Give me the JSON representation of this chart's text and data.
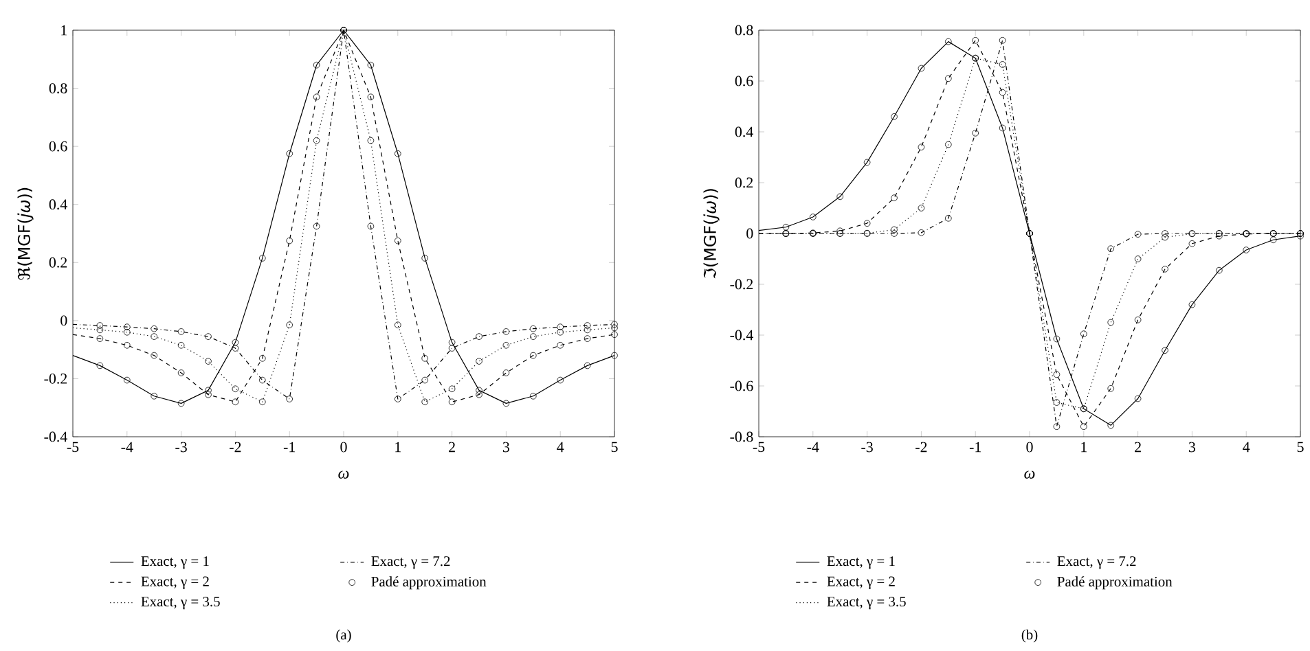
{
  "chart_data": [
    {
      "type": "line",
      "xlabel": "ω",
      "ylabel": "ℜ(MGF(*jω*))",
      "annotations": [
        "(a)"
      ],
      "legend": "bottom",
      "x": [
        -5,
        -4.5,
        -4,
        -3.5,
        -3,
        -2.5,
        -2,
        -1.5,
        -1,
        -0.5,
        0,
        0.5,
        1,
        1.5,
        2,
        2.5,
        3,
        3.5,
        4,
        4.5,
        5
      ],
      "xlim": [
        -5,
        5
      ],
      "xticks": [
        -5,
        -4,
        -3,
        -2,
        -1,
        0,
        1,
        2,
        3,
        4,
        5
      ],
      "ylim": [
        -0.4,
        1
      ],
      "yticks": [
        -0.4,
        -0.2,
        0,
        0.2,
        0.4,
        0.6,
        0.8,
        1
      ],
      "series": [
        {
          "name": "Exact, γ = 1",
          "color": "#000000",
          "line_style": "solid",
          "values": [
            -0.12,
            -0.155,
            -0.205,
            -0.26,
            -0.285,
            -0.24,
            -0.075,
            0.215,
            0.575,
            0.88,
            1,
            0.88,
            0.575,
            0.215,
            -0.075,
            -0.24,
            -0.285,
            -0.26,
            -0.205,
            -0.155,
            -0.12
          ]
        },
        {
          "name": "Exact, γ = 2",
          "color": "#000000",
          "line_style": "dashed",
          "values": [
            -0.048,
            -0.062,
            -0.085,
            -0.12,
            -0.18,
            -0.255,
            -0.28,
            -0.13,
            0.275,
            0.77,
            1,
            0.77,
            0.275,
            -0.13,
            -0.28,
            -0.255,
            -0.18,
            -0.12,
            -0.085,
            -0.062,
            -0.048
          ]
        },
        {
          "name": "Exact, γ = 3.5",
          "color": "#000000",
          "line_style": "dotted",
          "values": [
            -0.025,
            -0.032,
            -0.04,
            -0.055,
            -0.085,
            -0.14,
            -0.235,
            -0.28,
            -0.015,
            0.62,
            1,
            0.62,
            -0.015,
            -0.28,
            -0.235,
            -0.14,
            -0.085,
            -0.055,
            -0.04,
            -0.032,
            -0.025
          ]
        },
        {
          "name": "Exact, γ = 7.2",
          "color": "#000000",
          "line_style": "dashdot",
          "values": [
            -0.013,
            -0.017,
            -0.022,
            -0.028,
            -0.038,
            -0.055,
            -0.095,
            -0.205,
            -0.27,
            0.325,
            1,
            0.325,
            -0.27,
            -0.205,
            -0.095,
            -0.055,
            -0.038,
            -0.028,
            -0.022,
            -0.017,
            -0.013
          ]
        },
        {
          "name": "Padé approximation",
          "type": "scatter",
          "marker": "circle",
          "color": "#000000",
          "x": [
            -4.5,
            -4,
            -3.5,
            -3,
            -2.5,
            -2,
            -1.5,
            -1,
            -0.5,
            0,
            0.5,
            1,
            1.5,
            2,
            2.5,
            3,
            3.5,
            4,
            4.5,
            5,
            -4.5,
            -4,
            -3.5,
            -3,
            -2.5,
            -2,
            -1.5,
            -1,
            -0.5,
            0,
            0.5,
            1,
            1.5,
            2,
            2.5,
            3,
            3.5,
            4,
            4.5,
            5,
            -4.5,
            -4,
            -3.5,
            -3,
            -2.5,
            -2,
            -1.5,
            -1,
            -0.5,
            0,
            0.5,
            1,
            1.5,
            2,
            2.5,
            3,
            3.5,
            4,
            4.5,
            5,
            -4.5,
            -4,
            -3.5,
            -3,
            -2.5,
            -2,
            -1.5,
            -1,
            -0.5,
            0,
            0.5,
            1,
            1.5,
            2,
            2.5,
            3,
            3.5,
            4,
            4.5,
            5
          ],
          "values": [
            -0.155,
            -0.205,
            -0.26,
            -0.285,
            -0.24,
            -0.075,
            0.215,
            0.575,
            0.88,
            1,
            0.88,
            0.575,
            0.215,
            -0.075,
            -0.24,
            -0.285,
            -0.26,
            -0.205,
            -0.155,
            -0.12,
            -0.062,
            -0.085,
            -0.12,
            -0.18,
            -0.255,
            -0.28,
            -0.13,
            0.275,
            0.77,
            1,
            0.77,
            0.275,
            -0.13,
            -0.28,
            -0.255,
            -0.18,
            -0.12,
            -0.085,
            -0.062,
            -0.048,
            -0.032,
            -0.04,
            -0.055,
            -0.085,
            -0.14,
            -0.235,
            -0.28,
            -0.015,
            0.62,
            1,
            0.62,
            -0.015,
            -0.28,
            -0.235,
            -0.14,
            -0.085,
            -0.055,
            -0.04,
            -0.032,
            -0.025,
            -0.017,
            -0.022,
            -0.028,
            -0.038,
            -0.055,
            -0.095,
            -0.205,
            -0.27,
            0.325,
            1,
            0.325,
            -0.27,
            -0.205,
            -0.095,
            -0.055,
            -0.038,
            -0.028,
            -0.022,
            -0.017,
            -0.013
          ]
        }
      ]
    },
    {
      "type": "line",
      "xlabel": "ω",
      "ylabel": "ℑ(MGF(*jω*))",
      "annotations": [
        "(b)"
      ],
      "legend": "bottom",
      "x": [
        -5,
        -4.5,
        -4,
        -3.5,
        -3,
        -2.5,
        -2,
        -1.5,
        -1,
        -0.5,
        0,
        0.5,
        1,
        1.5,
        2,
        2.5,
        3,
        3.5,
        4,
        4.5,
        5
      ],
      "xlim": [
        -5,
        5
      ],
      "xticks": [
        -5,
        -4,
        -3,
        -2,
        -1,
        0,
        1,
        2,
        3,
        4,
        5
      ],
      "ylim": [
        -0.8,
        0.8
      ],
      "yticks": [
        -0.8,
        -0.6,
        -0.4,
        -0.2,
        0,
        0.2,
        0.4,
        0.6,
        0.8
      ],
      "series": [
        {
          "name": "Exact, γ = 1",
          "color": "#000000",
          "line_style": "solid",
          "values": [
            0.012,
            0.025,
            0.065,
            0.145,
            0.28,
            0.46,
            0.65,
            0.755,
            0.69,
            0.415,
            0,
            -0.415,
            -0.69,
            -0.755,
            -0.65,
            -0.46,
            -0.28,
            -0.145,
            -0.065,
            -0.025,
            -0.01
          ]
        },
        {
          "name": "Exact, γ = 2",
          "color": "#000000",
          "line_style": "dashed",
          "values": [
            0,
            0,
            0.002,
            0.01,
            0.04,
            0.14,
            0.34,
            0.61,
            0.76,
            0.555,
            0,
            -0.555,
            -0.76,
            -0.61,
            -0.34,
            -0.14,
            -0.04,
            -0.01,
            -0.002,
            0,
            0
          ]
        },
        {
          "name": "Exact, γ = 3.5",
          "color": "#000000",
          "line_style": "dotted",
          "values": [
            0,
            0,
            0,
            0,
            0.001,
            0.015,
            0.1,
            0.35,
            0.69,
            0.665,
            0,
            -0.665,
            -0.69,
            -0.35,
            -0.1,
            -0.015,
            -0.001,
            0,
            0,
            0,
            0
          ]
        },
        {
          "name": "Exact, γ = 7.2",
          "color": "#000000",
          "line_style": "dashdot",
          "values": [
            0,
            0,
            0,
            0,
            0,
            0,
            0.003,
            0.06,
            0.395,
            0.76,
            0,
            -0.76,
            -0.395,
            -0.06,
            -0.003,
            0,
            0,
            0,
            0,
            0,
            0
          ]
        },
        {
          "name": "Padé approximation",
          "type": "scatter",
          "marker": "circle",
          "color": "#000000",
          "x": [
            -4.5,
            -4,
            -3.5,
            -3,
            -2.5,
            -2,
            -1.5,
            -1,
            -0.5,
            0,
            0.5,
            1,
            1.5,
            2,
            2.5,
            3,
            3.5,
            4,
            4.5,
            5,
            -4.5,
            -4,
            -3.5,
            -3,
            -2.5,
            -2,
            -1.5,
            -1,
            -0.5,
            0,
            0.5,
            1,
            1.5,
            2,
            2.5,
            3,
            3.5,
            4,
            4.5,
            5,
            -4.5,
            -4,
            -3.5,
            -3,
            -2.5,
            -2,
            -1.5,
            -1,
            -0.5,
            0,
            0.5,
            1,
            1.5,
            2,
            2.5,
            3,
            3.5,
            4,
            4.5,
            5,
            -4.5,
            -4,
            -3.5,
            -3,
            -2.5,
            -2,
            -1.5,
            -1,
            -0.5,
            0,
            0.5,
            1,
            1.5,
            2,
            2.5,
            3,
            3.5,
            4,
            4.5,
            5
          ],
          "values": [
            0.025,
            0.065,
            0.145,
            0.28,
            0.46,
            0.65,
            0.755,
            0.69,
            0.415,
            0,
            -0.415,
            -0.69,
            -0.755,
            -0.65,
            -0.46,
            -0.28,
            -0.145,
            -0.065,
            -0.025,
            -0.01,
            0,
            0.002,
            0.01,
            0.04,
            0.14,
            0.34,
            0.61,
            0.76,
            0.555,
            0,
            -0.555,
            -0.76,
            -0.61,
            -0.34,
            -0.14,
            -0.04,
            -0.01,
            -0.002,
            0,
            0,
            0,
            0,
            0,
            0.001,
            0.015,
            0.1,
            0.35,
            0.69,
            0.665,
            0,
            -0.665,
            -0.69,
            -0.35,
            -0.1,
            -0.015,
            -0.001,
            0,
            0,
            0,
            0,
            0,
            0,
            0,
            0,
            0,
            0.003,
            0.06,
            0.395,
            0.76,
            0,
            -0.76,
            -0.395,
            -0.06,
            -0.003,
            0,
            0,
            0,
            0,
            0,
            0
          ]
        }
      ]
    }
  ]
}
